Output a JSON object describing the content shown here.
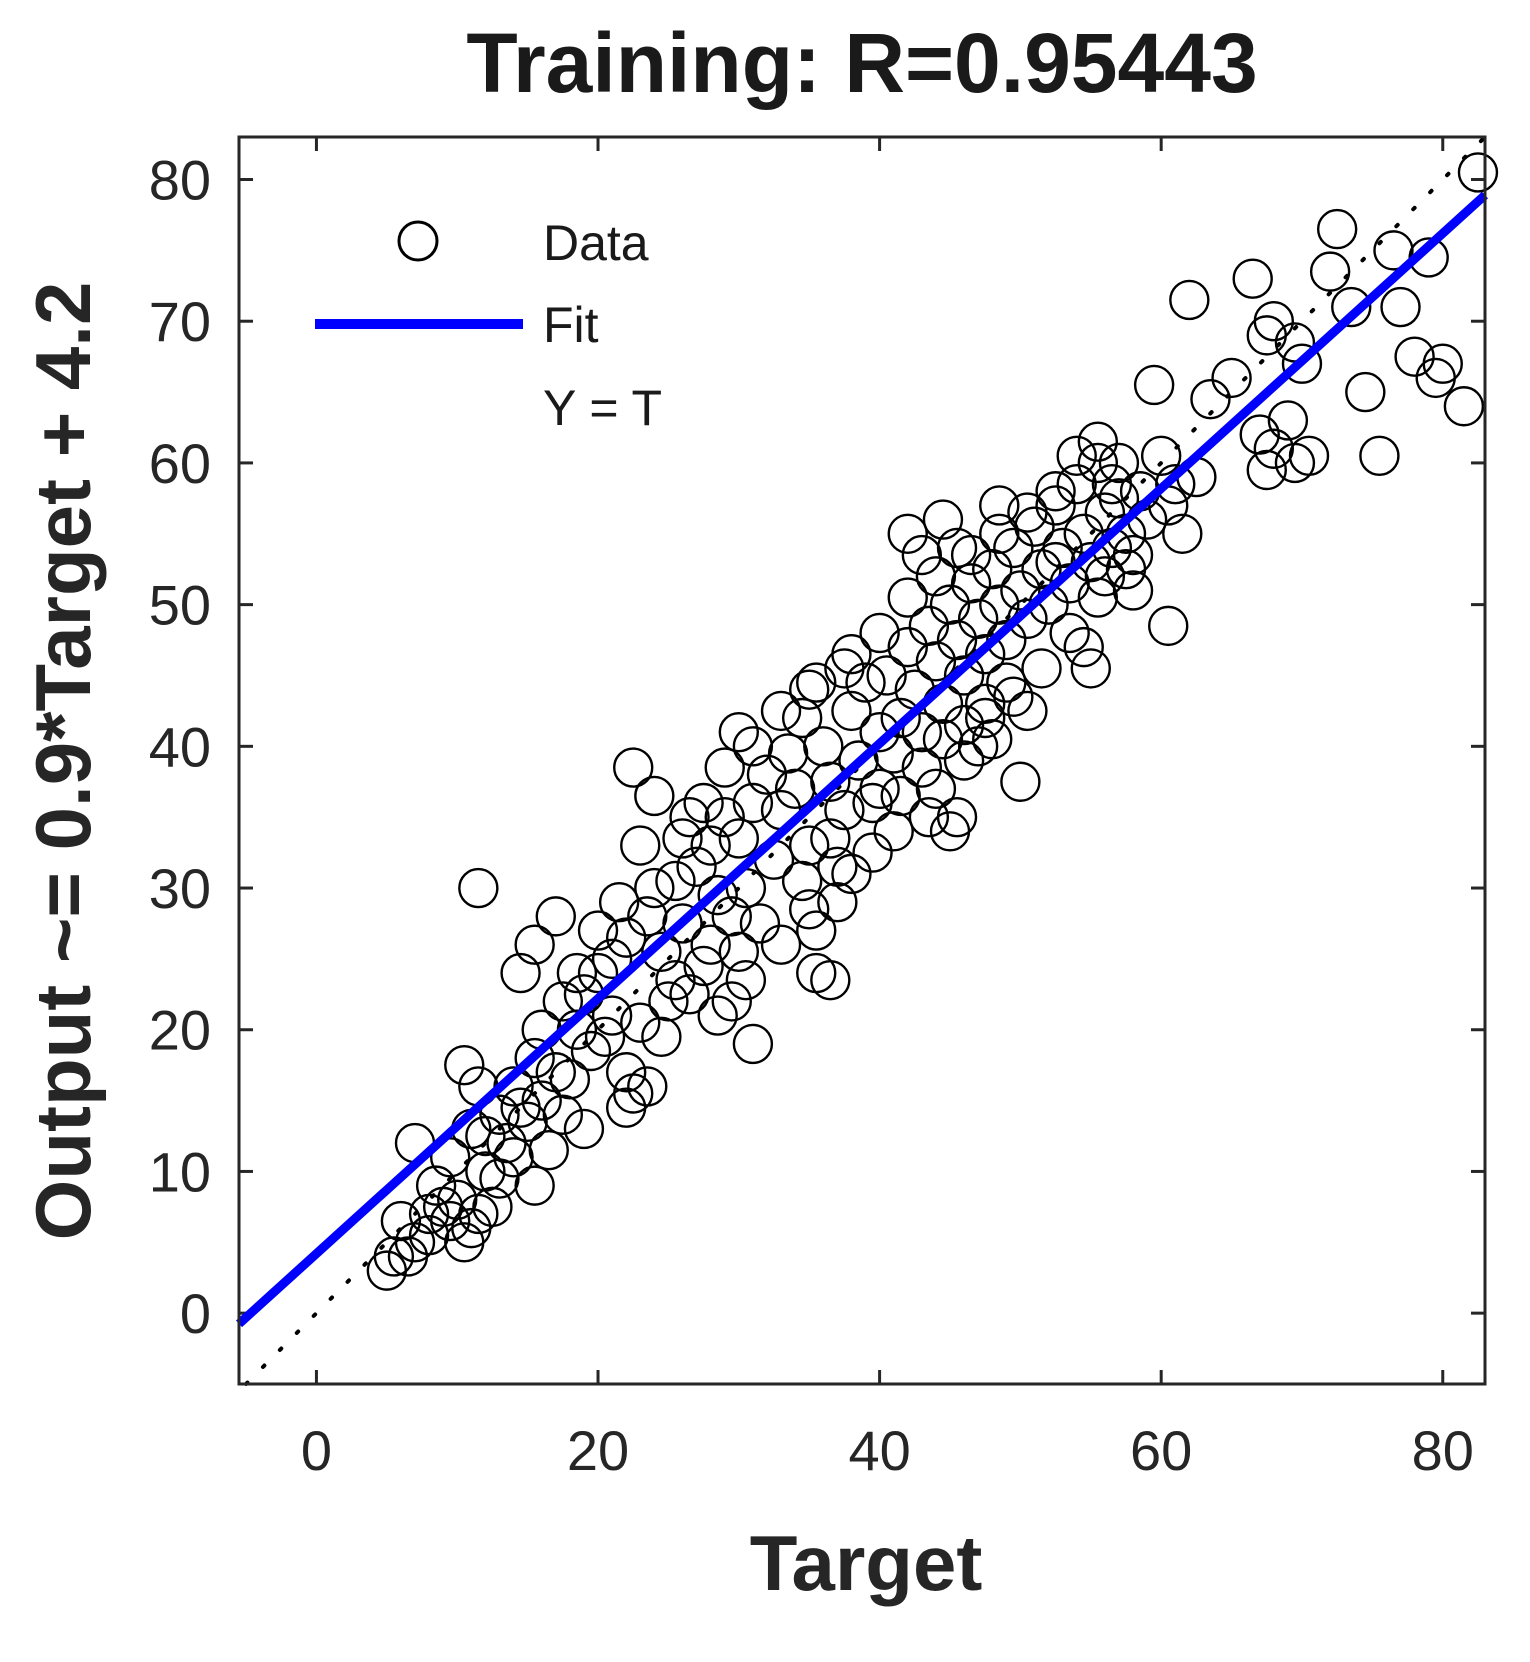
{
  "chart_data": {
    "type": "scatter",
    "title": "Training: R=0.95443",
    "xlabel": "Target",
    "ylabel": "Output ~= 0.9*Target + 4.2",
    "xlim": [
      -5.5,
      83
    ],
    "ylim": [
      -5,
      83
    ],
    "xticks": [
      0,
      20,
      40,
      60,
      80
    ],
    "yticks": [
      0,
      10,
      20,
      30,
      40,
      50,
      60,
      70,
      80
    ],
    "xtick_labels": [
      "0",
      "20",
      "40",
      "60",
      "80"
    ],
    "ytick_labels": [
      "0",
      "10",
      "20",
      "30",
      "40",
      "50",
      "60",
      "70",
      "80"
    ],
    "grid": false,
    "legend": {
      "placement": "top-left",
      "entries": [
        {
          "label": "Data",
          "marker": "circle"
        },
        {
          "label": "Fit",
          "line": "solid"
        },
        {
          "label": "Y = T",
          "line": "dotted"
        }
      ]
    },
    "fit": {
      "slope": 0.9,
      "intercept": 4.2,
      "color": "#0000ff"
    },
    "identity": {
      "color": "#000000"
    },
    "marker_color": "#000000",
    "series": [
      {
        "name": "Data",
        "points": [
          [
            82.5,
            80.5
          ],
          [
            72.5,
            76.5
          ],
          [
            76.5,
            75.0
          ],
          [
            79.0,
            74.5
          ],
          [
            72.0,
            73.5
          ],
          [
            66.5,
            73.0
          ],
          [
            62.0,
            71.5
          ],
          [
            73.5,
            71.0
          ],
          [
            77.0,
            71.0
          ],
          [
            68.0,
            70.0
          ],
          [
            67.5,
            69.0
          ],
          [
            69.5,
            68.5
          ],
          [
            70.0,
            67.0
          ],
          [
            78.0,
            67.5
          ],
          [
            80.0,
            67.0
          ],
          [
            65.0,
            66.0
          ],
          [
            59.5,
            65.5
          ],
          [
            63.5,
            64.5
          ],
          [
            74.5,
            65.0
          ],
          [
            79.5,
            66.0
          ],
          [
            81.5,
            64.0
          ],
          [
            69.0,
            63.0
          ],
          [
            67.0,
            62.0
          ],
          [
            68.0,
            61.0
          ],
          [
            69.5,
            60.0
          ],
          [
            67.5,
            59.5
          ],
          [
            70.5,
            60.5
          ],
          [
            75.5,
            60.5
          ],
          [
            57.0,
            60.0
          ],
          [
            55.5,
            61.5
          ],
          [
            60.0,
            60.5
          ],
          [
            62.5,
            59.0
          ],
          [
            60.5,
            57.0
          ],
          [
            48.5,
            57.0
          ],
          [
            44.5,
            56.0
          ],
          [
            42.0,
            55.0
          ],
          [
            57.5,
            55.0
          ],
          [
            61.5,
            55.0
          ],
          [
            45.5,
            54.0
          ],
          [
            43.0,
            53.5
          ],
          [
            52.5,
            53.0
          ],
          [
            56.0,
            52.0
          ],
          [
            58.0,
            51.0
          ],
          [
            60.5,
            48.5
          ],
          [
            54.5,
            47.0
          ],
          [
            55.0,
            45.5
          ],
          [
            50.5,
            42.5
          ],
          [
            47.5,
            42.0
          ],
          [
            48.0,
            40.5
          ],
          [
            46.0,
            39.0
          ],
          [
            50.0,
            37.5
          ],
          [
            45.5,
            35.0
          ],
          [
            45.0,
            34.0
          ],
          [
            43.5,
            35.0
          ],
          [
            35.0,
            44.0
          ],
          [
            37.5,
            45.5
          ],
          [
            40.0,
            41.0
          ],
          [
            30.0,
            41.0
          ],
          [
            22.5,
            38.5
          ],
          [
            24.0,
            36.5
          ],
          [
            26.5,
            35.0
          ],
          [
            36.5,
            33.5
          ],
          [
            39.5,
            32.5
          ],
          [
            35.0,
            28.5
          ],
          [
            37.0,
            29.0
          ],
          [
            36.5,
            23.5
          ],
          [
            35.5,
            24.0
          ],
          [
            30.5,
            23.5
          ],
          [
            29.5,
            22.0
          ],
          [
            31.0,
            19.0
          ],
          [
            28.0,
            26.0
          ],
          [
            23.0,
            33.0
          ],
          [
            11.5,
            30.0
          ],
          [
            17.0,
            28.0
          ],
          [
            15.5,
            26.0
          ],
          [
            14.5,
            24.0
          ],
          [
            17.5,
            22.0
          ],
          [
            16.0,
            20.0
          ],
          [
            22.0,
            17.0
          ],
          [
            22.5,
            15.5
          ],
          [
            23.5,
            16.0
          ],
          [
            22.0,
            14.5
          ],
          [
            24.5,
            19.5
          ],
          [
            25.0,
            22.0
          ],
          [
            10.5,
            17.5
          ],
          [
            11.5,
            16.0
          ],
          [
            13.0,
            14.0
          ],
          [
            12.0,
            12.5
          ],
          [
            14.0,
            11.0
          ],
          [
            16.5,
            11.5
          ],
          [
            13.0,
            9.5
          ],
          [
            12.5,
            7.5
          ],
          [
            11.0,
            6.0
          ],
          [
            10.5,
            5.0
          ],
          [
            8.0,
            7.0
          ],
          [
            7.0,
            5.0
          ],
          [
            5.5,
            4.0
          ],
          [
            5.0,
            3.0
          ],
          [
            6.0,
            6.5
          ],
          [
            8.5,
            9.0
          ],
          [
            9.5,
            11.0
          ],
          [
            7.0,
            12.0
          ],
          [
            10.0,
            8.0
          ],
          [
            11.0,
            13.0
          ],
          [
            14.0,
            16.0
          ],
          [
            15.5,
            18.0
          ],
          [
            17.0,
            17.0
          ],
          [
            18.5,
            20.0
          ],
          [
            19.0,
            22.5
          ],
          [
            20.0,
            24.0
          ],
          [
            21.0,
            21.0
          ],
          [
            22.0,
            26.5
          ],
          [
            21.5,
            29.0
          ],
          [
            23.5,
            28.0
          ],
          [
            24.5,
            25.5
          ],
          [
            25.5,
            30.5
          ],
          [
            26.0,
            27.5
          ],
          [
            27.0,
            31.5
          ],
          [
            28.0,
            33.0
          ],
          [
            28.5,
            29.5
          ],
          [
            29.0,
            35.0
          ],
          [
            30.0,
            33.5
          ],
          [
            30.5,
            30.0
          ],
          [
            31.0,
            36.0
          ],
          [
            32.0,
            38.0
          ],
          [
            32.5,
            32.0
          ],
          [
            33.0,
            35.5
          ],
          [
            33.5,
            39.5
          ],
          [
            34.0,
            37.0
          ],
          [
            34.5,
            42.0
          ],
          [
            35.0,
            33.0
          ],
          [
            36.0,
            40.0
          ],
          [
            36.5,
            37.5
          ],
          [
            37.5,
            35.5
          ],
          [
            38.0,
            42.5
          ],
          [
            38.5,
            39.0
          ],
          [
            39.0,
            44.5
          ],
          [
            40.0,
            37.0
          ],
          [
            40.5,
            45.0
          ],
          [
            41.0,
            39.5
          ],
          [
            41.5,
            42.0
          ],
          [
            42.0,
            47.0
          ],
          [
            42.5,
            44.0
          ],
          [
            43.0,
            41.0
          ],
          [
            43.5,
            48.5
          ],
          [
            44.0,
            46.0
          ],
          [
            44.5,
            43.0
          ],
          [
            45.0,
            50.0
          ],
          [
            45.5,
            47.5
          ],
          [
            46.0,
            45.0
          ],
          [
            46.5,
            51.5
          ],
          [
            47.0,
            49.0
          ],
          [
            47.5,
            46.5
          ],
          [
            48.0,
            52.5
          ],
          [
            48.5,
            50.0
          ],
          [
            49.0,
            47.5
          ],
          [
            49.5,
            54.0
          ],
          [
            50.0,
            51.0
          ],
          [
            50.5,
            49.0
          ],
          [
            51.0,
            55.5
          ],
          [
            51.5,
            52.5
          ],
          [
            52.0,
            50.0
          ],
          [
            52.5,
            57.0
          ],
          [
            53.0,
            54.0
          ],
          [
            53.5,
            51.5
          ],
          [
            54.0,
            58.5
          ],
          [
            54.5,
            55.0
          ],
          [
            55.0,
            53.0
          ],
          [
            55.5,
            60.0
          ],
          [
            56.0,
            56.5
          ],
          [
            56.5,
            54.0
          ],
          [
            57.0,
            57.5
          ],
          [
            58.0,
            53.5
          ],
          [
            59.0,
            56.0
          ],
          [
            31.5,
            27.5
          ],
          [
            29.5,
            28.0
          ],
          [
            27.5,
            24.5
          ],
          [
            26.5,
            22.5
          ],
          [
            25.5,
            23.5
          ],
          [
            34.5,
            30.5
          ],
          [
            37.0,
            31.5
          ],
          [
            39.5,
            36.0
          ],
          [
            41.5,
            36.5
          ],
          [
            43.0,
            38.5
          ],
          [
            44.5,
            40.5
          ],
          [
            46.0,
            41.5
          ],
          [
            47.5,
            43.0
          ],
          [
            49.0,
            44.5
          ],
          [
            15.0,
            13.5
          ],
          [
            16.0,
            15.0
          ],
          [
            18.0,
            16.5
          ],
          [
            19.5,
            18.5
          ],
          [
            20.5,
            19.5
          ],
          [
            13.5,
            12.0
          ],
          [
            12.0,
            10.0
          ],
          [
            9.0,
            7.5
          ],
          [
            8.0,
            5.5
          ],
          [
            14.5,
            14.5
          ],
          [
            18.5,
            24.0
          ],
          [
            20.0,
            27.0
          ],
          [
            21.0,
            25.0
          ],
          [
            23.0,
            20.5
          ],
          [
            24.0,
            30.0
          ],
          [
            26.0,
            33.5
          ],
          [
            27.5,
            36.0
          ],
          [
            29.0,
            38.5
          ],
          [
            31.0,
            40.0
          ],
          [
            33.0,
            42.5
          ],
          [
            35.5,
            44.5
          ],
          [
            38.0,
            46.5
          ],
          [
            40.0,
            48.0
          ],
          [
            42.0,
            50.5
          ],
          [
            44.0,
            52.0
          ],
          [
            46.5,
            53.5
          ],
          [
            48.5,
            55.0
          ],
          [
            50.5,
            56.5
          ],
          [
            52.5,
            58.0
          ],
          [
            54.0,
            60.5
          ],
          [
            56.5,
            58.5
          ],
          [
            58.5,
            58.0
          ],
          [
            61.0,
            58.5
          ],
          [
            57.5,
            52.5
          ],
          [
            55.5,
            50.5
          ],
          [
            53.5,
            48.0
          ],
          [
            51.5,
            45.5
          ],
          [
            49.5,
            43.5
          ],
          [
            47.0,
            40.0
          ],
          [
            44.0,
            37.0
          ],
          [
            41.0,
            34.0
          ],
          [
            38.0,
            31.0
          ],
          [
            35.5,
            27.0
          ],
          [
            33.0,
            26.0
          ],
          [
            30.0,
            25.5
          ],
          [
            28.5,
            21.0
          ],
          [
            17.5,
            14.0
          ],
          [
            19.0,
            13.0
          ],
          [
            15.5,
            9.0
          ],
          [
            11.5,
            7.0
          ],
          [
            9.5,
            6.5
          ],
          [
            6.5,
            4.0
          ]
        ]
      }
    ]
  }
}
